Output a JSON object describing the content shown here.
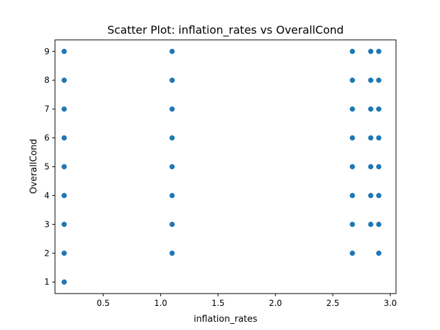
{
  "chart_data": {
    "type": "scatter",
    "title": "Scatter Plot: inflation_rates vs OverallCond",
    "xlabel": "inflation_rates",
    "ylabel": "OverallCond",
    "xlim": [
      0.08,
      3.05
    ],
    "ylim": [
      0.6,
      9.4
    ],
    "xticks": [
      0.5,
      1.0,
      1.5,
      2.0,
      2.5,
      3.0
    ],
    "xtick_labels": [
      "0.5",
      "1.0",
      "1.5",
      "2.0",
      "2.5",
      "3.0"
    ],
    "yticks": [
      1,
      2,
      3,
      4,
      5,
      6,
      7,
      8,
      9
    ],
    "ytick_labels": [
      "1",
      "2",
      "3",
      "4",
      "5",
      "6",
      "7",
      "8",
      "9"
    ],
    "grid": false,
    "marker_color": "#1f77b4",
    "points": [
      {
        "x": 0.16,
        "y": 1
      },
      {
        "x": 0.16,
        "y": 2
      },
      {
        "x": 0.16,
        "y": 3
      },
      {
        "x": 0.16,
        "y": 4
      },
      {
        "x": 0.16,
        "y": 5
      },
      {
        "x": 0.16,
        "y": 6
      },
      {
        "x": 0.16,
        "y": 7
      },
      {
        "x": 0.16,
        "y": 8
      },
      {
        "x": 0.16,
        "y": 9
      },
      {
        "x": 1.1,
        "y": 2
      },
      {
        "x": 1.1,
        "y": 3
      },
      {
        "x": 1.1,
        "y": 4
      },
      {
        "x": 1.1,
        "y": 5
      },
      {
        "x": 1.1,
        "y": 6
      },
      {
        "x": 1.1,
        "y": 7
      },
      {
        "x": 1.1,
        "y": 8
      },
      {
        "x": 1.1,
        "y": 9
      },
      {
        "x": 2.67,
        "y": 2
      },
      {
        "x": 2.67,
        "y": 3
      },
      {
        "x": 2.67,
        "y": 4
      },
      {
        "x": 2.67,
        "y": 5
      },
      {
        "x": 2.67,
        "y": 6
      },
      {
        "x": 2.67,
        "y": 7
      },
      {
        "x": 2.67,
        "y": 8
      },
      {
        "x": 2.67,
        "y": 9
      },
      {
        "x": 2.83,
        "y": 3
      },
      {
        "x": 2.83,
        "y": 4
      },
      {
        "x": 2.83,
        "y": 5
      },
      {
        "x": 2.83,
        "y": 6
      },
      {
        "x": 2.83,
        "y": 7
      },
      {
        "x": 2.83,
        "y": 8
      },
      {
        "x": 2.83,
        "y": 9
      },
      {
        "x": 2.9,
        "y": 2
      },
      {
        "x": 2.9,
        "y": 3
      },
      {
        "x": 2.9,
        "y": 4
      },
      {
        "x": 2.9,
        "y": 5
      },
      {
        "x": 2.9,
        "y": 6
      },
      {
        "x": 2.9,
        "y": 7
      },
      {
        "x": 2.9,
        "y": 8
      },
      {
        "x": 2.9,
        "y": 9
      }
    ]
  }
}
